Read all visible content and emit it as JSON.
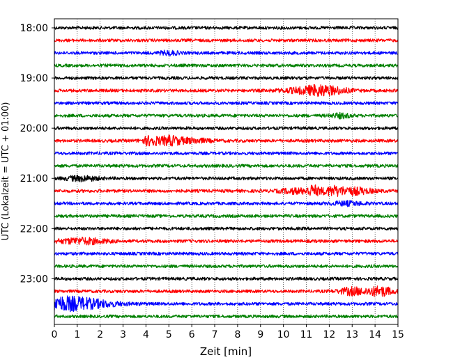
{
  "chart_data": {
    "type": "line",
    "description_style": "helicorder",
    "xlabel": "Zeit  [min]",
    "ylabel": "UTC (Lokalzeit = UTC + 01:00)",
    "xlim": [
      0,
      15
    ],
    "x_ticks": [
      "0",
      "1",
      "2",
      "3",
      "4",
      "5",
      "6",
      "7",
      "8",
      "9",
      "10",
      "11",
      "12",
      "13",
      "14",
      "15"
    ],
    "y_tick_labels": [
      "18:00",
      "19:00",
      "20:00",
      "21:00",
      "22:00",
      "23:00"
    ],
    "grid": "vertical-dotted",
    "row_minutes": 15,
    "row_colors": [
      "#000000",
      "#ff0000",
      "#0000ff",
      "#008000"
    ],
    "rows": [
      {
        "start": "18:00",
        "events": []
      },
      {
        "start": "18:15",
        "events": []
      },
      {
        "start": "18:30",
        "events": [
          {
            "t": 5.0,
            "amp": 1.5,
            "dur": 0.6
          }
        ]
      },
      {
        "start": "18:45",
        "events": []
      },
      {
        "start": "19:00",
        "events": []
      },
      {
        "start": "19:15",
        "events": [
          {
            "t": 10.8,
            "amp": 2.0,
            "dur": 1.4
          },
          {
            "t": 11.6,
            "amp": 3.5,
            "dur": 0.8
          },
          {
            "t": 12.4,
            "amp": 2.0,
            "dur": 0.8
          }
        ]
      },
      {
        "start": "19:30",
        "events": []
      },
      {
        "start": "19:45",
        "events": [
          {
            "t": 12.5,
            "amp": 1.8,
            "dur": 0.6
          }
        ]
      },
      {
        "start": "20:00",
        "events": []
      },
      {
        "start": "20:15",
        "events": [
          {
            "t": 4.2,
            "amp": 4.0,
            "dur": 0.5
          },
          {
            "t": 5.0,
            "amp": 3.0,
            "dur": 0.6
          },
          {
            "t": 5.8,
            "amp": 2.0,
            "dur": 1.4
          }
        ]
      },
      {
        "start": "20:30",
        "events": []
      },
      {
        "start": "20:45",
        "events": []
      },
      {
        "start": "21:00",
        "events": [
          {
            "t": 1.2,
            "amp": 2.0,
            "dur": 1.0
          }
        ]
      },
      {
        "start": "21:15",
        "events": [
          {
            "t": 10.5,
            "amp": 2.0,
            "dur": 1.0
          },
          {
            "t": 11.3,
            "amp": 4.0,
            "dur": 0.4
          },
          {
            "t": 12.1,
            "amp": 3.0,
            "dur": 0.6
          },
          {
            "t": 13.0,
            "amp": 3.0,
            "dur": 1.2
          }
        ]
      },
      {
        "start": "21:30",
        "events": [
          {
            "t": 12.8,
            "amp": 1.5,
            "dur": 1.0
          }
        ]
      },
      {
        "start": "21:45",
        "events": []
      },
      {
        "start": "22:00",
        "events": []
      },
      {
        "start": "22:15",
        "events": [
          {
            "t": 1.2,
            "amp": 2.5,
            "dur": 1.5
          }
        ]
      },
      {
        "start": "22:30",
        "events": []
      },
      {
        "start": "22:45",
        "events": []
      },
      {
        "start": "23:00",
        "events": []
      },
      {
        "start": "23:15",
        "events": [
          {
            "t": 13.0,
            "amp": 3.0,
            "dur": 0.8
          },
          {
            "t": 14.2,
            "amp": 4.0,
            "dur": 0.8
          }
        ]
      },
      {
        "start": "23:30",
        "events": [
          {
            "t": 0.5,
            "amp": 6.0,
            "dur": 2.5
          }
        ]
      },
      {
        "start": "23:45",
        "events": []
      }
    ]
  }
}
